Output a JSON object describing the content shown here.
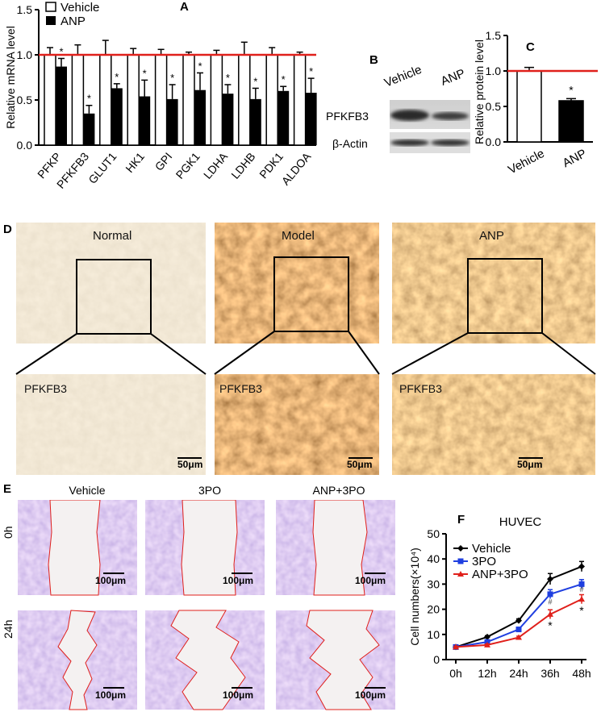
{
  "colors": {
    "bar_black": "#000000",
    "reference_line": "#e0201b",
    "series_vehicle": "#000000",
    "series_3po": "#1f3fe0",
    "series_anp3po": "#e0201b",
    "ihc_brown": "#9a5a1e",
    "ihc_tan": "#e8d8b6",
    "crystal_violet": "#8c5cc4",
    "wound_edge": "#e0201b"
  },
  "panels": {
    "A": "A",
    "B": "B",
    "C": "C",
    "D": "D",
    "E": "E",
    "F": "F"
  },
  "chart_data": [
    {
      "id": "A",
      "type": "bar",
      "ylabel": "Relative mRNA level",
      "ylim": [
        0,
        1.5
      ],
      "yticks": [
        "0.0",
        "0.5",
        "1.0",
        "1.5"
      ],
      "reference_line": 1.0,
      "legend": [
        "Vehicle",
        "ANP"
      ],
      "legend_placement": "top-left",
      "categories": [
        "PFKP",
        "PFKFB3",
        "GLUT1",
        "HK1",
        "GPI",
        "PGK1",
        "LDHA",
        "LDHB",
        "PDK1",
        "ALDOA"
      ],
      "series": [
        {
          "name": "Vehicle",
          "values": [
            1.0,
            1.0,
            1.0,
            1.0,
            1.0,
            1.0,
            1.0,
            1.0,
            1.0,
            1.0
          ],
          "errors": [
            0.08,
            0.11,
            0.16,
            0.07,
            0.06,
            0.03,
            0.05,
            0.14,
            0.08,
            0.03
          ]
        },
        {
          "name": "ANP",
          "values": [
            0.87,
            0.35,
            0.63,
            0.54,
            0.51,
            0.61,
            0.57,
            0.51,
            0.6,
            0.58
          ],
          "errors": [
            0.09,
            0.09,
            0.05,
            0.18,
            0.16,
            0.19,
            0.1,
            0.12,
            0.05,
            0.16
          ]
        }
      ],
      "significance": [
        "*",
        "*",
        "*",
        "*",
        "*",
        "*",
        "*",
        "*",
        "*",
        "*"
      ]
    },
    {
      "id": "C",
      "type": "bar",
      "ylabel": "Relative protein level",
      "ylim": [
        0,
        1.5
      ],
      "yticks": [
        "0.0",
        "0.5",
        "1.0",
        "1.5"
      ],
      "reference_line": 1.0,
      "categories": [
        "Vehicle",
        "ANP"
      ],
      "values": [
        1.0,
        0.58
      ],
      "errors": [
        0.05,
        0.03
      ],
      "fills": [
        "white",
        "black"
      ],
      "significance": [
        "",
        "*"
      ]
    },
    {
      "id": "F",
      "type": "line",
      "title": "HUVEC",
      "ylabel": "Cell numbers(×10⁴)",
      "ylim": [
        0,
        50
      ],
      "yticks": [
        "0",
        "10",
        "20",
        "30",
        "40",
        "50"
      ],
      "x": [
        "0h",
        "12h",
        "24h",
        "36h",
        "48h"
      ],
      "legend_placement": "top-left",
      "series": [
        {
          "name": "Vehicle",
          "values": [
            5,
            9,
            15.5,
            32,
            37
          ],
          "errors": [
            0.3,
            0.5,
            0.7,
            2.2,
            2.0
          ],
          "marker": "diamond"
        },
        {
          "name": "3PO",
          "values": [
            5,
            7,
            12,
            26,
            30
          ],
          "errors": [
            0.3,
            0.4,
            0.6,
            1.8,
            1.8
          ],
          "marker": "square"
        },
        {
          "name": "ANP+3PO",
          "values": [
            5,
            5.8,
            8.8,
            18,
            24
          ],
          "errors": [
            0.3,
            0.4,
            0.5,
            1.8,
            1.8
          ],
          "marker": "triangle"
        }
      ],
      "annotations": [
        {
          "x": "36h",
          "text": "#"
        },
        {
          "x": "36h",
          "text": "*"
        },
        {
          "x": "48h",
          "text": "#"
        },
        {
          "x": "48h",
          "text": "*"
        }
      ]
    }
  ],
  "blot": {
    "columns": [
      "Vehicle",
      "ANP"
    ],
    "rows": [
      "PFKFB3",
      "β-Actin"
    ]
  },
  "ihc": {
    "columns": [
      "Normal",
      "Model",
      "ANP"
    ],
    "stain_label": "PFKFB3",
    "scale": "50μm"
  },
  "wound": {
    "columns": [
      "Vehicle",
      "3PO",
      "ANP+3PO"
    ],
    "rows": [
      "0h",
      "24h"
    ],
    "scale": "100μm"
  }
}
